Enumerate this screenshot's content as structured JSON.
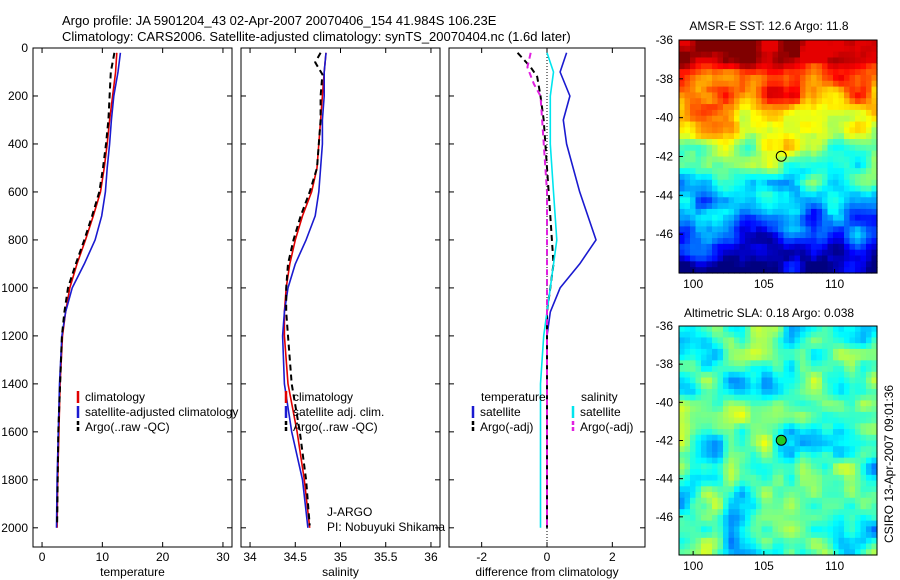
{
  "title_lines": [
    "Argo profile: JA 5901204_43 02-Apr-2007 20070406_154 41.984S 106.23E",
    "Climatology: CARS2006. Satellite-adjusted climatology: synTS_20070404.nc (1.6d later)"
  ],
  "side_note": "CSIRO 13-Apr-2007 09:01:36",
  "colors": {
    "red": "#e00000",
    "blue": "#1a1ad0",
    "black": "#000000",
    "cyan": "#00e5ee",
    "magenta": "#e020e0"
  },
  "chart_data": [
    {
      "type": "line",
      "xlabel": "temperature",
      "ylabel": "",
      "xlim": [
        -1.5,
        31.5
      ],
      "ylim": [
        2080,
        0
      ],
      "xticks": [
        0,
        10,
        20,
        30
      ],
      "yticks": [
        0,
        200,
        400,
        600,
        800,
        1000,
        1200,
        1400,
        1600,
        1800,
        2000
      ],
      "legend": [
        "climatology",
        "satellite-adjusted climatology",
        "Argo(..raw -QC)"
      ],
      "series": [
        {
          "name": "climatology",
          "color": "red",
          "points": [
            [
              12.4,
              20
            ],
            [
              12.2,
              100
            ],
            [
              11.7,
              200
            ],
            [
              11.2,
              300
            ],
            [
              10.8,
              400
            ],
            [
              10.3,
              500
            ],
            [
              9.7,
              600
            ],
            [
              8.5,
              700
            ],
            [
              7.2,
              800
            ],
            [
              5.8,
              900
            ],
            [
              4.6,
              1000
            ],
            [
              3.9,
              1100
            ],
            [
              3.4,
              1200
            ],
            [
              3.0,
              1400
            ],
            [
              2.8,
              1600
            ],
            [
              2.6,
              1800
            ],
            [
              2.5,
              2000
            ]
          ]
        },
        {
          "name": "satellite-adjusted climatology",
          "color": "blue",
          "points": [
            [
              13.0,
              20
            ],
            [
              12.6,
              100
            ],
            [
              11.9,
              200
            ],
            [
              11.5,
              300
            ],
            [
              11.2,
              400
            ],
            [
              10.8,
              500
            ],
            [
              10.5,
              600
            ],
            [
              9.9,
              700
            ],
            [
              8.8,
              800
            ],
            [
              7.0,
              900
            ],
            [
              5.0,
              1000
            ],
            [
              3.9,
              1100
            ],
            [
              3.3,
              1200
            ],
            [
              2.9,
              1400
            ],
            [
              2.7,
              1600
            ],
            [
              2.5,
              1800
            ],
            [
              2.4,
              2000
            ]
          ]
        },
        {
          "name": "Argo(..raw -QC)",
          "color": "black",
          "dash": true,
          "points": [
            [
              12.0,
              20
            ],
            [
              11.4,
              100
            ],
            [
              11.2,
              200
            ],
            [
              11.0,
              300
            ],
            [
              10.6,
              400
            ],
            [
              10.1,
              500
            ],
            [
              9.5,
              600
            ],
            [
              8.3,
              700
            ],
            [
              7.0,
              800
            ],
            [
              5.6,
              900
            ],
            [
              4.3,
              1000
            ],
            [
              3.7,
              1100
            ],
            [
              3.3,
              1200
            ],
            [
              3.0,
              1400
            ],
            [
              2.7,
              1600
            ],
            [
              2.6,
              1800
            ],
            [
              2.5,
              1990
            ]
          ]
        }
      ]
    },
    {
      "type": "line",
      "xlabel": "salinity",
      "ylabel": "",
      "xlim": [
        33.9,
        36.1
      ],
      "ylim": [
        2080,
        0
      ],
      "xticks": [
        34,
        34.5,
        35,
        35.5,
        36
      ],
      "yticks": [
        0,
        200,
        400,
        600,
        800,
        1000,
        1200,
        1400,
        1600,
        1800,
        2000
      ],
      "legend": [
        "climatology",
        "satellite adj. clim.",
        "Argo(..raw -QC)"
      ],
      "series": [
        {
          "name": "climatology",
          "color": "red",
          "points": [
            [
              34.84,
              20
            ],
            [
              34.82,
              100
            ],
            [
              34.8,
              200
            ],
            [
              34.78,
              300
            ],
            [
              34.76,
              400
            ],
            [
              34.74,
              500
            ],
            [
              34.68,
              600
            ],
            [
              34.58,
              700
            ],
            [
              34.5,
              800
            ],
            [
              34.44,
              900
            ],
            [
              34.4,
              1000
            ],
            [
              34.38,
              1100
            ],
            [
              34.38,
              1200
            ],
            [
              34.42,
              1400
            ],
            [
              34.52,
              1600
            ],
            [
              34.6,
              1800
            ],
            [
              34.66,
              2000
            ]
          ]
        },
        {
          "name": "satellite adj. clim.",
          "color": "blue",
          "points": [
            [
              34.84,
              20
            ],
            [
              34.82,
              100
            ],
            [
              34.82,
              200
            ],
            [
              34.8,
              300
            ],
            [
              34.8,
              400
            ],
            [
              34.78,
              500
            ],
            [
              34.76,
              600
            ],
            [
              34.72,
              700
            ],
            [
              34.62,
              800
            ],
            [
              34.5,
              900
            ],
            [
              34.42,
              1000
            ],
            [
              34.38,
              1100
            ],
            [
              34.36,
              1200
            ],
            [
              34.38,
              1400
            ],
            [
              34.46,
              1600
            ],
            [
              34.58,
              1800
            ],
            [
              34.64,
              2000
            ]
          ]
        },
        {
          "name": "Argo(..raw -QC)",
          "color": "black",
          "dash": true,
          "points": [
            [
              34.78,
              20
            ],
            [
              34.72,
              60
            ],
            [
              34.8,
              110
            ],
            [
              34.78,
              200
            ],
            [
              34.78,
              300
            ],
            [
              34.76,
              400
            ],
            [
              34.74,
              500
            ],
            [
              34.66,
              600
            ],
            [
              34.56,
              700
            ],
            [
              34.48,
              800
            ],
            [
              34.42,
              900
            ],
            [
              34.4,
              1000
            ],
            [
              34.4,
              1100
            ],
            [
              34.42,
              1200
            ],
            [
              34.46,
              1400
            ],
            [
              34.55,
              1600
            ],
            [
              34.62,
              1800
            ],
            [
              34.66,
              1990
            ]
          ]
        }
      ]
    },
    {
      "type": "line",
      "xlabel": "difference from climatology",
      "ylabel": "",
      "xlim": [
        -3.0,
        3.0
      ],
      "ylim": [
        2080,
        0
      ],
      "xticks": [
        -2,
        0,
        2
      ],
      "yticks": [
        0,
        200,
        400,
        600,
        800,
        1000,
        1200,
        1400,
        1600,
        1800,
        2000
      ],
      "legend_groups": [
        {
          "heading": "temperature",
          "entries": [
            "satellite",
            "Argo(-adj)"
          ]
        },
        {
          "heading": "salinity",
          "entries": [
            "satellite",
            "Argo(-adj)"
          ]
        }
      ],
      "series": [
        {
          "name": "satellite",
          "group": "temperature",
          "color": "blue",
          "points": [
            [
              0.6,
              20
            ],
            [
              0.4,
              100
            ],
            [
              0.7,
              200
            ],
            [
              0.5,
              300
            ],
            [
              0.6,
              400
            ],
            [
              1.0,
              600
            ],
            [
              1.3,
              720
            ],
            [
              1.5,
              800
            ],
            [
              1.0,
              900
            ],
            [
              0.4,
              1000
            ],
            [
              0.1,
              1100
            ],
            [
              0.0,
              1200
            ],
            [
              0.0,
              1600
            ],
            [
              0.0,
              2000
            ]
          ]
        },
        {
          "name": "Argo(-adj)",
          "group": "temperature",
          "color": "black",
          "dash": true,
          "points": [
            [
              -0.9,
              20
            ],
            [
              -0.5,
              80
            ],
            [
              -0.3,
              120
            ],
            [
              -0.2,
              200
            ],
            [
              -0.1,
              300
            ],
            [
              0.0,
              500
            ],
            [
              0.1,
              700
            ],
            [
              0.2,
              900
            ],
            [
              0.1,
              1000
            ],
            [
              0.0,
              1100
            ],
            [
              0.0,
              1500
            ],
            [
              0.0,
              2000
            ]
          ]
        },
        {
          "name": "satellite",
          "group": "salinity",
          "color": "cyan",
          "points": [
            [
              0.0,
              20
            ],
            [
              0.2,
              100
            ],
            [
              0.1,
              200
            ],
            [
              0.1,
              400
            ],
            [
              0.2,
              600
            ],
            [
              0.3,
              800
            ],
            [
              0.1,
              1000
            ],
            [
              -0.1,
              1200
            ],
            [
              -0.2,
              1400
            ],
            [
              -0.2,
              1600
            ],
            [
              -0.2,
              1800
            ],
            [
              -0.2,
              2000
            ]
          ]
        },
        {
          "name": "Argo(-adj)",
          "group": "salinity",
          "color": "magenta",
          "dash": true,
          "points": [
            [
              -0.5,
              20
            ],
            [
              -0.6,
              80
            ],
            [
              -0.4,
              150
            ],
            [
              -0.2,
              200
            ],
            [
              0.0,
              600
            ],
            [
              0.0,
              2000
            ]
          ]
        }
      ]
    },
    {
      "type": "heatmap",
      "title": "AMSR-E SST: 12.6 Argo: 11.8",
      "xlim": [
        99,
        113
      ],
      "ylim": [
        -48,
        -36
      ],
      "xticks": [
        100,
        105,
        110
      ],
      "yticks": [
        -36,
        -38,
        -40,
        -42,
        -44,
        -46
      ],
      "marker": {
        "lon": 106.23,
        "lat": -41.984
      }
    },
    {
      "type": "heatmap",
      "title": "Altimetric SLA: 0.18 Argo: 0.038",
      "xlim": [
        99,
        113
      ],
      "ylim": [
        -48,
        -36
      ],
      "xticks": [
        100,
        105,
        110
      ],
      "yticks": [
        -36,
        -38,
        -40,
        -42,
        -44,
        -46
      ],
      "marker": {
        "lon": 106.23,
        "lat": -41.984
      }
    }
  ],
  "annotations": {
    "agency": "J-ARGO",
    "pi": "PI: Nobuyuki Shikama"
  }
}
